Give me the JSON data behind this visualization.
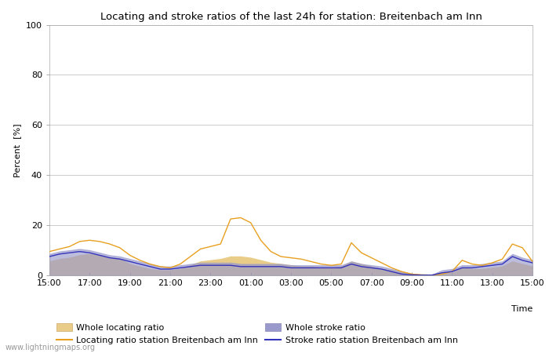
{
  "title": "Locating and stroke ratios of the last 24h for station: Breitenbach am Inn",
  "ylabel": "Percent  [%]",
  "xlabel": "Time",
  "xlim": [
    0,
    48
  ],
  "ylim": [
    0,
    100
  ],
  "yticks": [
    0,
    20,
    40,
    60,
    80,
    100
  ],
  "xtick_labels": [
    "15:00",
    "17:00",
    "19:00",
    "21:00",
    "23:00",
    "01:00",
    "03:00",
    "05:00",
    "07:00",
    "09:00",
    "11:00",
    "13:00",
    "15:00"
  ],
  "xtick_positions": [
    0,
    4,
    8,
    12,
    16,
    20,
    24,
    28,
    32,
    36,
    40,
    44,
    48
  ],
  "watermark": "www.lightningmaps.org",
  "background_color": "#ffffff",
  "plot_bg_color": "#ffffff",
  "locating_line_color": "#e8a020",
  "locating_fill_color": "#e8cc88",
  "stroke_line_color": "#3333bb",
  "stroke_fill_color": "#9999cc",
  "locating_line": [
    9.5,
    10.5,
    11.5,
    13.5,
    14.0,
    13.5,
    12.5,
    11.0,
    8.0,
    6.0,
    4.5,
    3.5,
    3.0,
    4.5,
    7.5,
    10.5,
    11.5,
    12.5,
    22.5,
    23.0,
    21.0,
    14.0,
    9.5,
    7.5,
    7.0,
    6.5,
    5.5,
    4.5,
    4.0,
    4.5,
    13.0,
    9.0,
    7.0,
    5.0,
    3.0,
    1.5,
    0.5,
    0.2,
    0.1,
    0.5,
    1.5,
    6.0,
    4.5,
    4.0,
    5.0,
    6.5,
    12.5,
    11.0,
    5.5
  ],
  "locating_fill_upper": [
    5.5,
    6.5,
    7.0,
    8.0,
    8.5,
    8.0,
    7.0,
    6.5,
    4.5,
    3.5,
    2.5,
    2.0,
    2.0,
    2.5,
    4.0,
    5.5,
    6.0,
    6.5,
    7.5,
    7.5,
    7.0,
    6.0,
    5.0,
    4.5,
    4.0,
    3.5,
    3.5,
    3.0,
    3.0,
    3.5,
    5.5,
    4.5,
    3.5,
    2.5,
    2.0,
    1.0,
    0.5,
    0.2,
    0.1,
    0.5,
    1.0,
    3.0,
    2.5,
    2.5,
    3.0,
    3.5,
    5.5,
    4.5,
    3.5
  ],
  "locating_fill_lower": [
    0,
    0,
    0,
    0,
    0,
    0,
    0,
    0,
    0,
    0,
    0,
    0,
    0,
    0,
    0,
    0,
    0,
    0,
    0,
    0,
    0,
    0,
    0,
    0,
    0,
    0,
    0,
    0,
    0,
    0,
    0,
    0,
    0,
    0,
    0,
    0,
    0,
    0,
    0,
    0,
    0,
    0,
    0,
    0,
    0,
    0,
    0,
    0,
    0
  ],
  "stroke_line": [
    7.5,
    8.5,
    9.0,
    9.5,
    9.0,
    8.0,
    7.0,
    6.5,
    5.5,
    4.5,
    3.5,
    2.5,
    2.5,
    3.0,
    3.5,
    4.0,
    4.0,
    4.0,
    4.0,
    3.5,
    3.5,
    3.5,
    3.5,
    3.5,
    3.0,
    3.0,
    3.0,
    3.0,
    3.0,
    3.0,
    4.5,
    3.5,
    3.0,
    2.5,
    1.5,
    0.5,
    0.2,
    0.1,
    0.1,
    1.0,
    1.5,
    3.0,
    3.0,
    3.5,
    4.0,
    4.5,
    7.5,
    6.0,
    5.0
  ],
  "stroke_fill_upper": [
    8.5,
    9.5,
    10.0,
    10.5,
    10.0,
    9.0,
    8.0,
    7.5,
    6.5,
    5.5,
    4.5,
    3.5,
    3.5,
    4.0,
    4.5,
    5.0,
    5.0,
    5.0,
    5.0,
    4.5,
    4.5,
    4.5,
    4.5,
    4.5,
    4.0,
    4.0,
    4.0,
    4.0,
    4.0,
    4.0,
    5.5,
    4.5,
    4.0,
    3.5,
    2.5,
    1.5,
    0.5,
    0.2,
    0.2,
    2.0,
    2.5,
    4.0,
    4.0,
    4.5,
    5.0,
    5.5,
    8.5,
    7.0,
    6.0
  ],
  "stroke_fill_lower": [
    0,
    0,
    0,
    0,
    0,
    0,
    0,
    0,
    0,
    0,
    0,
    0,
    0,
    0,
    0,
    0,
    0,
    0,
    0,
    0,
    0,
    0,
    0,
    0,
    0,
    0,
    0,
    0,
    0,
    0,
    0,
    0,
    0,
    0,
    0,
    0,
    0,
    0,
    0,
    0,
    0,
    0,
    0,
    0,
    0,
    0,
    0,
    0,
    0
  ]
}
